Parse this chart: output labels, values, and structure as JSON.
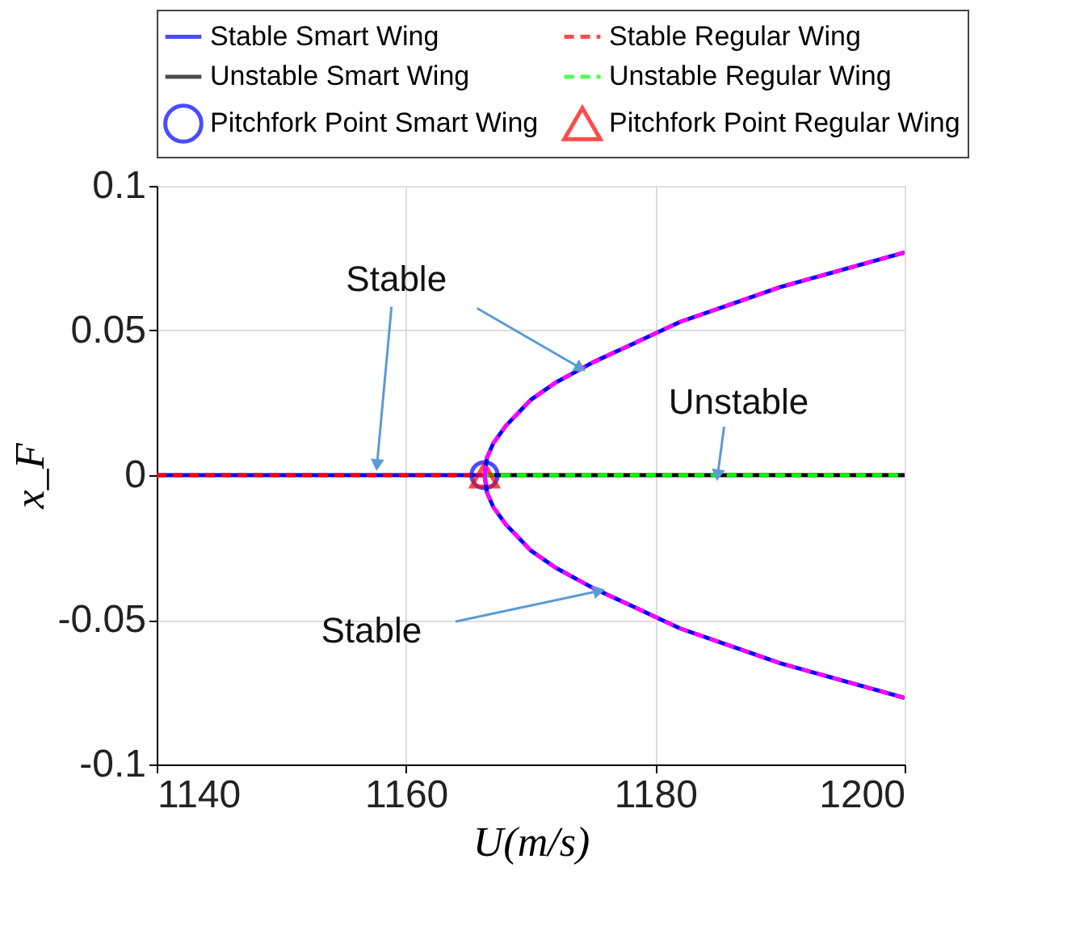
{
  "chart_data": {
    "type": "line",
    "xlabel": "U(m/s)",
    "ylabel": "x_F",
    "xlim": [
      1140,
      1200
    ],
    "ylim": [
      -0.1,
      0.1
    ],
    "xticks": [
      1140,
      1160,
      1180,
      1200
    ],
    "yticks": [
      -0.1,
      -0.05,
      0,
      0.05,
      0.1
    ],
    "grid": true,
    "legend": "top",
    "annotations": [
      {
        "text": "Stable",
        "x": 1174,
        "y": 0.037
      },
      {
        "text": "Unstable",
        "x": 1185,
        "y": 0
      },
      {
        "text": "Stable",
        "x": 1175.5,
        "y": -0.04
      }
    ],
    "series": [
      {
        "name": "Stable Smart Wing",
        "color": "#0000ff",
        "line_style": "solid",
        "x": [
          1140,
          1166.3
        ],
        "values": [
          0,
          0
        ]
      },
      {
        "name": "Stable Regular Wing",
        "color": "#ff0000",
        "line_style": "dashed",
        "x": [
          1140,
          1166.3
        ],
        "values": [
          0,
          0
        ]
      },
      {
        "name": "Unstable Smart Wing",
        "color": "#000000",
        "line_style": "solid",
        "x": [
          1166.3,
          1200
        ],
        "values": [
          0,
          0
        ]
      },
      {
        "name": "Unstable Regular Wing",
        "color": "#00ff00",
        "line_style": "dashed",
        "x": [
          1166.3,
          1200
        ],
        "values": [
          0,
          0
        ]
      },
      {
        "name": "Pitchfork Point Smart Wing",
        "color": "#0000ff",
        "type": "scatter",
        "marker": "circle",
        "x": [
          1166.3
        ],
        "values": [
          0
        ]
      },
      {
        "name": "Pitchfork Point Regular Wing",
        "color": "#ff0000",
        "type": "scatter",
        "marker": "triangle",
        "x": [
          1166.3
        ],
        "values": [
          0
        ]
      },
      {
        "color": "#0000ff",
        "line_style": "solid",
        "x": [
          1166.3,
          1166.5,
          1167,
          1168,
          1170,
          1172,
          1175,
          1178,
          1182,
          1186,
          1190,
          1195,
          1200
        ],
        "values": [
          0,
          0.006,
          0.011,
          0.017,
          0.026,
          0.032,
          0.039,
          0.045,
          0.053,
          0.059,
          0.065,
          0.071,
          0.077
        ]
      },
      {
        "color": "#0000ff",
        "line_style": "solid",
        "x": [
          1166.3,
          1166.5,
          1167,
          1168,
          1170,
          1172,
          1175,
          1178,
          1182,
          1186,
          1190,
          1195,
          1200
        ],
        "values": [
          0,
          -0.006,
          -0.011,
          -0.017,
          -0.026,
          -0.032,
          -0.039,
          -0.045,
          -0.053,
          -0.059,
          -0.065,
          -0.071,
          -0.077
        ]
      },
      {
        "color": "#ff00ff",
        "line_style": "dashed",
        "x": [
          1166.3,
          1166.5,
          1167,
          1168,
          1170,
          1172,
          1175,
          1178,
          1182,
          1186,
          1190,
          1195,
          1200
        ],
        "values": [
          0,
          0.006,
          0.011,
          0.017,
          0.026,
          0.032,
          0.039,
          0.045,
          0.053,
          0.059,
          0.065,
          0.071,
          0.077
        ]
      },
      {
        "color": "#ff00ff",
        "line_style": "dashed",
        "x": [
          1166.3,
          1166.5,
          1167,
          1168,
          1170,
          1172,
          1175,
          1178,
          1182,
          1186,
          1190,
          1195,
          1200
        ],
        "values": [
          0,
          -0.006,
          -0.011,
          -0.017,
          -0.026,
          -0.032,
          -0.039,
          -0.045,
          -0.053,
          -0.059,
          -0.065,
          -0.071,
          -0.077
        ]
      }
    ]
  }
}
